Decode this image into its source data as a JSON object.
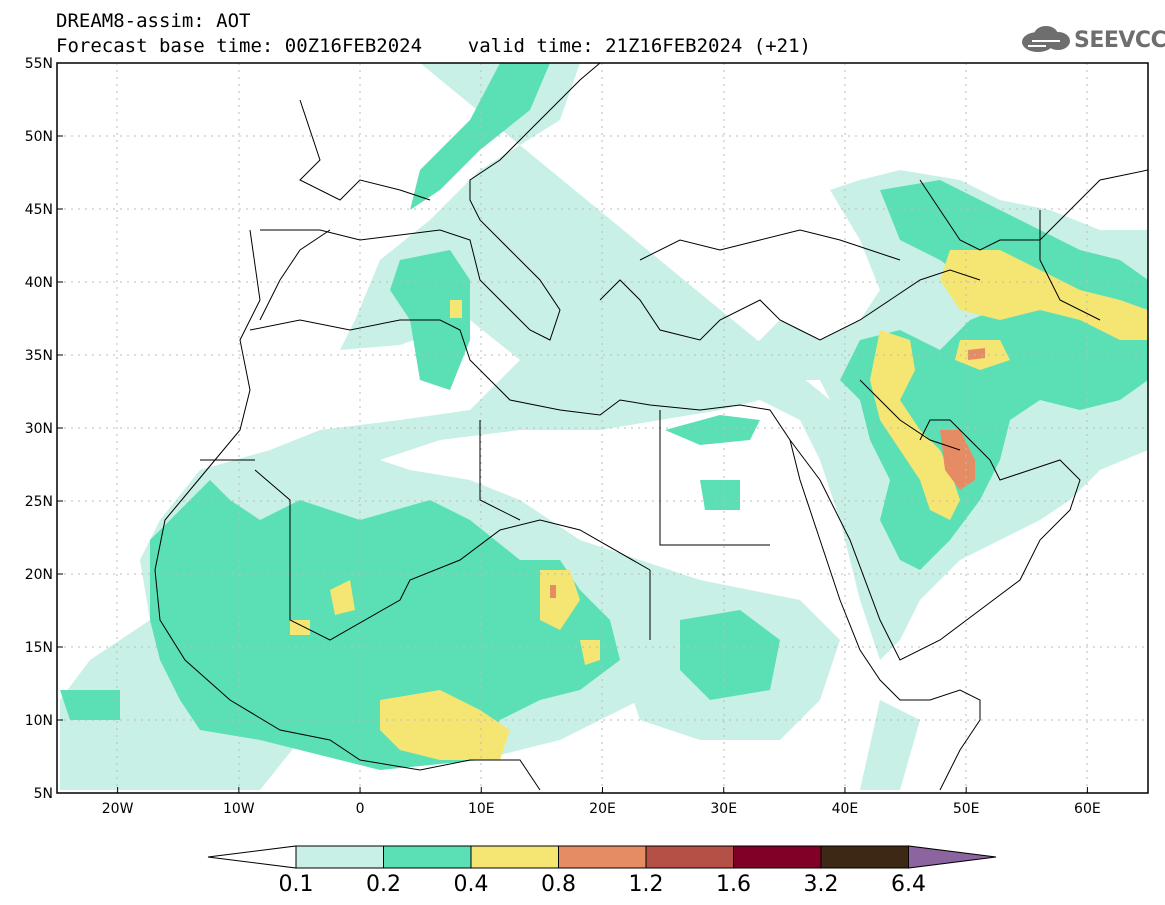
{
  "title": {
    "line1": "DREAM8-assim: AOT",
    "line2": "Forecast base time: 00Z16FEB2024    valid time: 21Z16FEB2024 (+21)"
  },
  "logo": {
    "text": "SEEVCCC",
    "icon": "cloud-icon"
  },
  "map": {
    "projection": "lat-lon",
    "lon_range": [
      -25,
      65
    ],
    "lat_range": [
      5,
      55
    ],
    "grid": true,
    "lat_labels": [
      "55N",
      "50N",
      "45N",
      "40N",
      "35N",
      "30N",
      "25N",
      "20N",
      "15N",
      "10N",
      "5N"
    ],
    "lon_labels": [
      "20W",
      "10W",
      "0",
      "10E",
      "20E",
      "30E",
      "40E",
      "50E",
      "60E"
    ]
  },
  "colorbar": {
    "labels": [
      "0.1",
      "0.2",
      "0.4",
      "0.8",
      "1.2",
      "1.6",
      "3.2",
      "6.4"
    ],
    "colors": [
      "#ffffff",
      "#c8f0e6",
      "#5ae0b4",
      "#f5e673",
      "#e68c64",
      "#b45046",
      "#800028",
      "#3c2814",
      "#8c64a0"
    ]
  }
}
